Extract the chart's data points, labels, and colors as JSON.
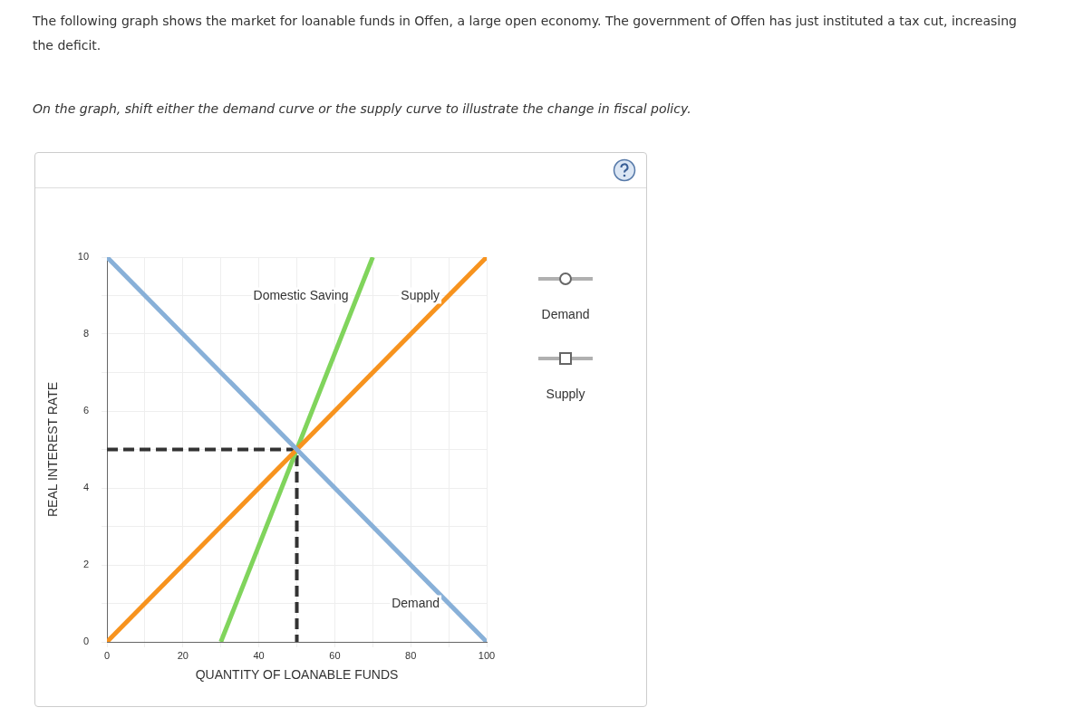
{
  "chart_data": {
    "type": "line",
    "title": "The following graph shows the market for loanable funds in Offen, a large open economy. The government of Offen has just instituted a tax cut, increasing the deficit.",
    "subtitle": "On the graph, shift either the demand curve or the supply curve to illustrate the change in fiscal policy.",
    "xlabel": "QUANTITY OF LOANABLE FUNDS",
    "ylabel": "REAL INTEREST RATE",
    "xlim": [
      0,
      100
    ],
    "ylim": [
      0,
      10
    ],
    "xticks": [
      0,
      {
        "value": 10,
        "label": null
      },
      20,
      {
        "value": 30,
        "label": null
      },
      40,
      {
        "value": 50,
        "label": null
      },
      60,
      {
        "value": 70,
        "label": null
      },
      80,
      {
        "value": 90,
        "label": null
      },
      100
    ],
    "yticks": [
      0,
      {
        "value": 1,
        "label": null
      },
      2,
      {
        "value": 3,
        "label": null
      },
      4,
      {
        "value": 5,
        "label": null
      },
      6,
      {
        "value": 7,
        "label": null
      },
      8,
      {
        "value": 9,
        "label": null
      },
      10
    ],
    "grid": true,
    "legend": false,
    "marker": "none",
    "annotations": [
      "Demand",
      "Supply"
    ],
    "series": [
      {
        "name": "Demand",
        "color": "#88b0d8",
        "x": [
          0,
          100
        ],
        "values": [
          10,
          0
        ]
      },
      {
        "name": "Supply",
        "color": "#f7931e",
        "x": [
          0,
          100
        ],
        "values": [
          0,
          10
        ]
      },
      {
        "name": "Domestic Saving",
        "color": "#80d45c",
        "x": [
          30,
          70
        ],
        "values": [
          0,
          10
        ]
      },
      {
        "color": "#333333",
        "line_style": "dashed",
        "x": [
          0,
          50,
          50
        ],
        "values": [
          5,
          5,
          0
        ]
      }
    ]
  }
}
